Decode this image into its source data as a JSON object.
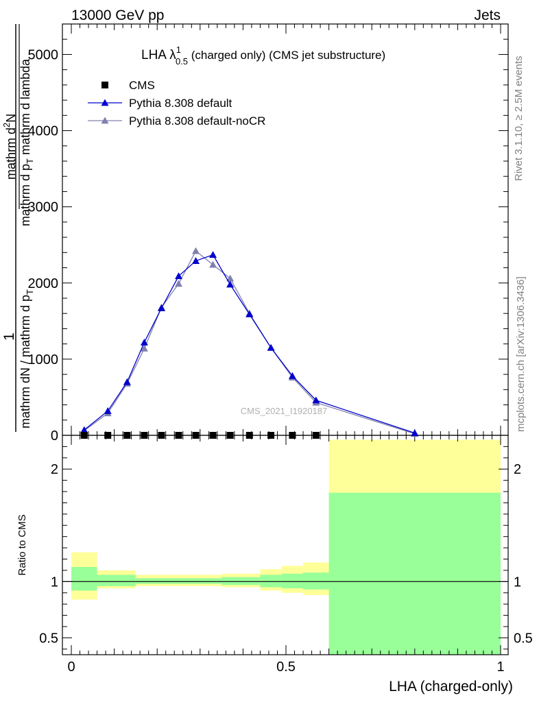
{
  "header": {
    "left": "13000 GeV pp",
    "right": "Jets"
  },
  "plot_title": {
    "main": "LHA λ",
    "superscript": "1",
    "subscript": "0.5",
    "rest": " (charged only) (CMS jet substructure)"
  },
  "ylabel_upper": {
    "numerator_one": "1",
    "denominator_part": "mathrm dN / mathrm d p",
    "denominator_sub": "T",
    "line2": "mathrm d N",
    "line2b": "mathrm d",
    "line2c": "mathrm d lambda",
    "line2_sub": "T",
    "frac_top": "mathrm d",
    "frac_top_sup": "2",
    "frac_top_rest": "N",
    "frac_bottom": "mathrm d p",
    "frac_bottom_sub": "T",
    "frac_bottom_rest": " mathrm d lambda"
  },
  "ylabel_ratio": "Ratio to CMS",
  "xlabel": "LHA (charged-only)",
  "watermark": "CMS_2021_I1920187",
  "side_text_top": "Rivet 3.1.10, ≥ 2.5M events",
  "side_text_bottom": "mcplots.cern.ch [arXiv:1306.3436]",
  "colors": {
    "cms": "#000000",
    "default": "#0000cc",
    "nocr": "#8080b0",
    "band_outer": "#ffff99",
    "band_inner": "#99ff99"
  },
  "chart_data": {
    "type": "line",
    "xlim": [
      0,
      1
    ],
    "ylim": [
      0,
      5400
    ],
    "yticks": [
      0,
      1000,
      2000,
      3000,
      4000,
      5000
    ],
    "ytick_labels": [
      "0",
      "1000",
      "2000",
      "3000",
      "4000",
      "5000"
    ],
    "xticks": [
      0,
      0.5,
      1
    ],
    "xtick_labels": [
      "0",
      "0.5",
      "1"
    ],
    "ratio_ylim": [
      0.35,
      2.3
    ],
    "ratio_ticks": [
      0.5,
      1,
      2
    ],
    "ratio_tick_labels": [
      "0.5",
      "1",
      "2"
    ],
    "legend": [
      {
        "label": "CMS",
        "marker": "square"
      },
      {
        "label": "Pythia 8.308 default",
        "marker": "triangle"
      },
      {
        "label": "Pythia 8.308 default-noCR",
        "marker": "triangle"
      }
    ],
    "series": [
      {
        "name": "CMS",
        "x": [
          0.03,
          0.085,
          0.13,
          0.17,
          0.21,
          0.25,
          0.29,
          0.33,
          0.37,
          0.415,
          0.465,
          0.515,
          0.57
        ],
        "y": [
          0,
          0,
          0,
          0,
          0,
          0,
          0,
          0,
          0,
          0,
          0,
          0,
          0
        ]
      },
      {
        "name": "Pythia 8.308 default",
        "x": [
          0.03,
          0.085,
          0.13,
          0.17,
          0.21,
          0.25,
          0.29,
          0.33,
          0.37,
          0.415,
          0.465,
          0.515,
          0.57,
          0.8
        ],
        "y": [
          70,
          320,
          700,
          1220,
          1670,
          2090,
          2290,
          2370,
          1980,
          1590,
          1150,
          780,
          460,
          30
        ]
      },
      {
        "name": "Pythia 8.308 default-noCR",
        "x": [
          0.03,
          0.085,
          0.13,
          0.17,
          0.21,
          0.25,
          0.29,
          0.33,
          0.37,
          0.415,
          0.465,
          0.515,
          0.57,
          0.8
        ],
        "y": [
          60,
          290,
          680,
          1140,
          1680,
          1990,
          2420,
          2240,
          2060,
          1600,
          1150,
          760,
          430,
          20
        ]
      }
    ],
    "ratio_bands": [
      {
        "x0": 0.0,
        "x1": 0.06,
        "inner": [
          0.92,
          1.13
        ],
        "outer": [
          0.84,
          1.26
        ]
      },
      {
        "x0": 0.06,
        "x1": 0.15,
        "inner": [
          0.96,
          1.06
        ],
        "outer": [
          0.94,
          1.1
        ]
      },
      {
        "x0": 0.15,
        "x1": 0.35,
        "inner": [
          0.98,
          1.03
        ],
        "outer": [
          0.96,
          1.06
        ]
      },
      {
        "x0": 0.35,
        "x1": 0.44,
        "inner": [
          0.97,
          1.04
        ],
        "outer": [
          0.95,
          1.07
        ]
      },
      {
        "x0": 0.44,
        "x1": 0.49,
        "inner": [
          0.95,
          1.06
        ],
        "outer": [
          0.92,
          1.11
        ]
      },
      {
        "x0": 0.49,
        "x1": 0.54,
        "inner": [
          0.94,
          1.07
        ],
        "outer": [
          0.9,
          1.14
        ]
      },
      {
        "x0": 0.54,
        "x1": 0.6,
        "inner": [
          0.93,
          1.08
        ],
        "outer": [
          0.88,
          1.17
        ]
      },
      {
        "x0": 0.6,
        "x1": 1.0,
        "inner": [
          0.35,
          1.79
        ],
        "outer": [
          0.35,
          2.26
        ]
      }
    ]
  }
}
